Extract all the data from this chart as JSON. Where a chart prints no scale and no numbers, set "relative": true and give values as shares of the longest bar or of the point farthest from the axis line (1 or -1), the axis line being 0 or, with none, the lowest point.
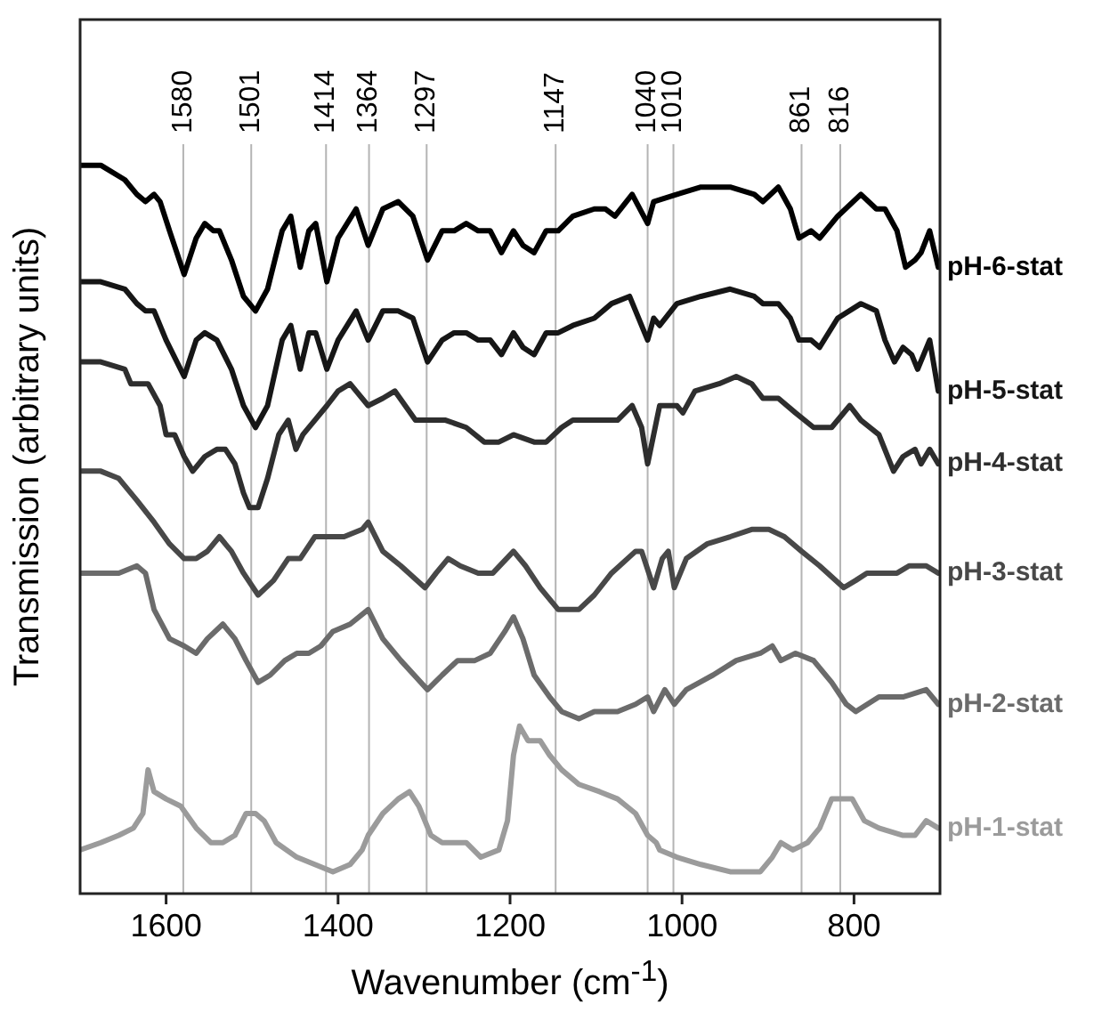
{
  "chart_data": {
    "type": "line",
    "xlabel": "Wavenumber (cm$^{-1}$)",
    "ylabel": "Transmission (arbitrary units)",
    "relative": true,
    "marker": "none",
    "line_style": "solid",
    "xlim": [
      1700,
      700
    ],
    "xticks": [
      1600,
      1400,
      1200,
      1000,
      800
    ],
    "ref_lines": [
      {
        "axis": "x",
        "value": 1580,
        "label": "1580"
      },
      {
        "axis": "x",
        "value": 1501,
        "label": "1501"
      },
      {
        "axis": "x",
        "value": 1414,
        "label": "1414"
      },
      {
        "axis": "x",
        "value": 1364,
        "label": "1364"
      },
      {
        "axis": "x",
        "value": 1297,
        "label": "1297"
      },
      {
        "axis": "x",
        "value": 1147,
        "label": "1147"
      },
      {
        "axis": "x",
        "value": 1040,
        "label": "1040"
      },
      {
        "axis": "x",
        "value": 1010,
        "label": "1010"
      },
      {
        "axis": "x",
        "value": 861,
        "label": "861"
      },
      {
        "axis": "x",
        "value": 816,
        "label": "816"
      }
    ],
    "series": [
      {
        "name": "pH-6-stat",
        "color": "#000000",
        "x": [
          1700,
          1676,
          1648,
          1634,
          1624,
          1614,
          1607,
          1596,
          1579,
          1565,
          1555,
          1545,
          1538,
          1524,
          1510,
          1496,
          1482,
          1465,
          1455,
          1444,
          1434,
          1426,
          1413,
          1400,
          1379,
          1365,
          1348,
          1330,
          1313,
          1296,
          1279,
          1265,
          1251,
          1237,
          1223,
          1210,
          1196,
          1185,
          1172,
          1158,
          1144,
          1127,
          1102,
          1089,
          1078,
          1058,
          1040,
          1033,
          1006,
          978,
          944,
          916,
          906,
          888,
          874,
          864,
          850,
          840,
          819,
          792,
          774,
          764,
          750,
          740,
          729,
          722,
          712,
          702
        ],
        "values": [
          1.0,
          1.0,
          0.98,
          0.96,
          0.95,
          0.96,
          0.95,
          0.91,
          0.85,
          0.9,
          0.92,
          0.91,
          0.91,
          0.87,
          0.82,
          0.8,
          0.83,
          0.91,
          0.93,
          0.86,
          0.91,
          0.92,
          0.84,
          0.9,
          0.94,
          0.89,
          0.94,
          0.95,
          0.93,
          0.87,
          0.91,
          0.91,
          0.92,
          0.91,
          0.91,
          0.88,
          0.91,
          0.89,
          0.88,
          0.91,
          0.91,
          0.93,
          0.94,
          0.94,
          0.93,
          0.96,
          0.92,
          0.95,
          0.96,
          0.97,
          0.97,
          0.96,
          0.95,
          0.97,
          0.94,
          0.9,
          0.91,
          0.9,
          0.93,
          0.96,
          0.94,
          0.94,
          0.91,
          0.86,
          0.87,
          0.88,
          0.91,
          0.86
        ]
      },
      {
        "name": "pH-5-stat",
        "color": "#161616",
        "x": [
          1700,
          1676,
          1648,
          1634,
          1624,
          1614,
          1600,
          1579,
          1565,
          1555,
          1541,
          1524,
          1510,
          1496,
          1482,
          1465,
          1455,
          1444,
          1434,
          1426,
          1413,
          1400,
          1379,
          1365,
          1348,
          1330,
          1313,
          1296,
          1279,
          1265,
          1251,
          1237,
          1223,
          1210,
          1196,
          1185,
          1172,
          1158,
          1144,
          1127,
          1102,
          1082,
          1061,
          1040,
          1033,
          1026,
          1006,
          978,
          944,
          916,
          906,
          888,
          874,
          864,
          850,
          840,
          819,
          792,
          774,
          764,
          753,
          743,
          733,
          726,
          712,
          702
        ],
        "values": [
          0.84,
          0.84,
          0.83,
          0.81,
          0.8,
          0.8,
          0.76,
          0.71,
          0.76,
          0.77,
          0.76,
          0.72,
          0.67,
          0.64,
          0.67,
          0.76,
          0.78,
          0.72,
          0.77,
          0.77,
          0.72,
          0.76,
          0.8,
          0.76,
          0.8,
          0.8,
          0.79,
          0.73,
          0.76,
          0.77,
          0.77,
          0.76,
          0.76,
          0.74,
          0.77,
          0.75,
          0.74,
          0.77,
          0.77,
          0.78,
          0.79,
          0.81,
          0.82,
          0.76,
          0.79,
          0.78,
          0.81,
          0.82,
          0.83,
          0.82,
          0.81,
          0.81,
          0.79,
          0.76,
          0.76,
          0.75,
          0.79,
          0.81,
          0.8,
          0.76,
          0.73,
          0.75,
          0.74,
          0.72,
          0.76,
          0.69
        ]
      },
      {
        "name": "pH-4-stat",
        "color": "#2e2e2e",
        "x": [
          1700,
          1676,
          1648,
          1641,
          1631,
          1621,
          1607,
          1600,
          1590,
          1579,
          1569,
          1555,
          1541,
          1531,
          1520,
          1510,
          1503,
          1493,
          1482,
          1469,
          1458,
          1449,
          1441,
          1427,
          1413,
          1400,
          1386,
          1379,
          1365,
          1348,
          1334,
          1310,
          1296,
          1275,
          1251,
          1230,
          1213,
          1196,
          1172,
          1158,
          1140,
          1127,
          1102,
          1075,
          1058,
          1047,
          1040,
          1026,
          1006,
          999,
          985,
          957,
          937,
          919,
          906,
          888,
          868,
          847,
          826,
          805,
          792,
          771,
          754,
          743,
          729,
          722,
          712,
          702
        ],
        "values": [
          0.73,
          0.73,
          0.72,
          0.7,
          0.7,
          0.7,
          0.67,
          0.63,
          0.63,
          0.6,
          0.58,
          0.6,
          0.61,
          0.61,
          0.59,
          0.55,
          0.53,
          0.53,
          0.57,
          0.63,
          0.65,
          0.61,
          0.63,
          0.65,
          0.67,
          0.69,
          0.7,
          0.69,
          0.67,
          0.68,
          0.69,
          0.65,
          0.65,
          0.65,
          0.64,
          0.62,
          0.62,
          0.63,
          0.62,
          0.62,
          0.64,
          0.65,
          0.65,
          0.65,
          0.67,
          0.64,
          0.59,
          0.67,
          0.67,
          0.66,
          0.69,
          0.7,
          0.71,
          0.7,
          0.68,
          0.68,
          0.66,
          0.64,
          0.64,
          0.67,
          0.65,
          0.63,
          0.58,
          0.6,
          0.61,
          0.59,
          0.61,
          0.59
        ]
      },
      {
        "name": "pH-3-stat",
        "color": "#484848",
        "x": [
          1700,
          1676,
          1655,
          1634,
          1614,
          1596,
          1579,
          1565,
          1552,
          1538,
          1524,
          1510,
          1493,
          1475,
          1458,
          1444,
          1427,
          1413,
          1393,
          1372,
          1365,
          1348,
          1327,
          1299,
          1286,
          1272,
          1258,
          1237,
          1220,
          1196,
          1182,
          1165,
          1144,
          1130,
          1120,
          1102,
          1082,
          1054,
          1047,
          1033,
          1023,
          1016,
          1009,
          995,
          971,
          944,
          919,
          899,
          881,
          861,
          840,
          812,
          798,
          785,
          764,
          750,
          736,
          716,
          702
        ],
        "values": [
          0.58,
          0.58,
          0.57,
          0.54,
          0.51,
          0.48,
          0.46,
          0.46,
          0.47,
          0.49,
          0.47,
          0.44,
          0.41,
          0.43,
          0.46,
          0.46,
          0.49,
          0.49,
          0.49,
          0.5,
          0.51,
          0.47,
          0.45,
          0.42,
          0.44,
          0.46,
          0.45,
          0.44,
          0.44,
          0.47,
          0.45,
          0.42,
          0.39,
          0.39,
          0.39,
          0.41,
          0.44,
          0.47,
          0.47,
          0.42,
          0.46,
          0.47,
          0.42,
          0.46,
          0.48,
          0.49,
          0.5,
          0.5,
          0.49,
          0.47,
          0.45,
          0.42,
          0.43,
          0.44,
          0.44,
          0.44,
          0.45,
          0.45,
          0.44
        ]
      },
      {
        "name": "pH-2-stat",
        "color": "#6b6b6b",
        "x": [
          1700,
          1676,
          1655,
          1634,
          1624,
          1614,
          1596,
          1579,
          1565,
          1552,
          1534,
          1520,
          1507,
          1493,
          1479,
          1462,
          1448,
          1434,
          1420,
          1406,
          1386,
          1365,
          1348,
          1327,
          1296,
          1279,
          1261,
          1241,
          1223,
          1206,
          1196,
          1185,
          1172,
          1154,
          1140,
          1120,
          1102,
          1075,
          1054,
          1040,
          1033,
          1020,
          1009,
          995,
          964,
          937,
          909,
          895,
          885,
          868,
          847,
          826,
          809,
          798,
          771,
          743,
          716,
          702
        ],
        "values": [
          0.44,
          0.44,
          0.44,
          0.45,
          0.44,
          0.39,
          0.35,
          0.34,
          0.33,
          0.35,
          0.37,
          0.35,
          0.32,
          0.29,
          0.3,
          0.32,
          0.33,
          0.33,
          0.34,
          0.36,
          0.37,
          0.39,
          0.35,
          0.32,
          0.28,
          0.3,
          0.32,
          0.32,
          0.33,
          0.36,
          0.38,
          0.35,
          0.3,
          0.27,
          0.25,
          0.24,
          0.25,
          0.25,
          0.26,
          0.27,
          0.25,
          0.28,
          0.26,
          0.28,
          0.3,
          0.32,
          0.33,
          0.34,
          0.32,
          0.33,
          0.32,
          0.29,
          0.26,
          0.25,
          0.27,
          0.27,
          0.28,
          0.26
        ]
      },
      {
        "name": "pH-1-stat",
        "color": "#9b9b9b",
        "x": [
          1700,
          1676,
          1655,
          1638,
          1627,
          1621,
          1614,
          1600,
          1583,
          1565,
          1548,
          1534,
          1520,
          1507,
          1496,
          1486,
          1472,
          1448,
          1427,
          1406,
          1386,
          1372,
          1365,
          1348,
          1330,
          1317,
          1306,
          1292,
          1279,
          1261,
          1251,
          1234,
          1213,
          1203,
          1196,
          1189,
          1179,
          1165,
          1154,
          1140,
          1120,
          1096,
          1075,
          1054,
          1040,
          1030,
          1026,
          1006,
          978,
          944,
          909,
          895,
          885,
          871,
          854,
          840,
          826,
          809,
          802,
          788,
          771,
          743,
          729,
          716,
          702
        ],
        "values": [
          0.06,
          0.07,
          0.08,
          0.09,
          0.11,
          0.17,
          0.14,
          0.13,
          0.12,
          0.09,
          0.07,
          0.07,
          0.08,
          0.11,
          0.11,
          0.1,
          0.07,
          0.05,
          0.04,
          0.03,
          0.04,
          0.06,
          0.08,
          0.11,
          0.13,
          0.14,
          0.12,
          0.08,
          0.07,
          0.07,
          0.07,
          0.05,
          0.06,
          0.1,
          0.19,
          0.23,
          0.21,
          0.21,
          0.19,
          0.17,
          0.15,
          0.14,
          0.13,
          0.11,
          0.08,
          0.07,
          0.06,
          0.05,
          0.04,
          0.03,
          0.03,
          0.05,
          0.07,
          0.06,
          0.07,
          0.09,
          0.13,
          0.13,
          0.13,
          0.1,
          0.09,
          0.08,
          0.08,
          0.1,
          0.09
        ]
      }
    ]
  }
}
